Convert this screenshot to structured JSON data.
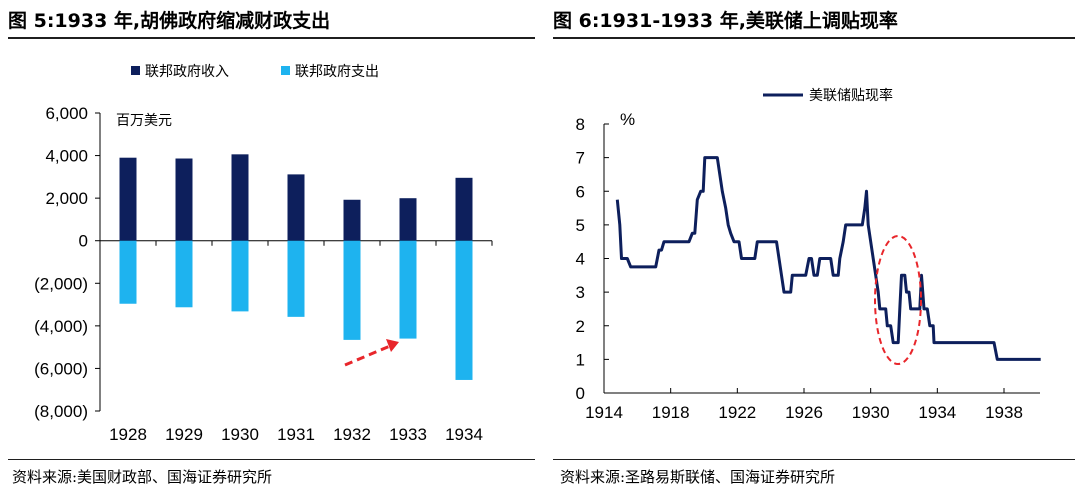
{
  "left": {
    "title": "图 5:1933 年,胡佛政府缩减财政支出",
    "source": "资料来源:美国财政部、国海证券研究所"
  },
  "right": {
    "title": "图 6:1931-1933 年,美联储上调贴现率",
    "source": "资料来源:圣路易斯联储、国海证券研究所"
  },
  "colors": {
    "revenue": "#0d1f5c",
    "spending": "#1eb3ef",
    "rate": "#0d1f5c",
    "annotation": "#e8262b"
  },
  "chart_data": [
    {
      "type": "bar",
      "unit_label": "百万美元",
      "categories": [
        "1928",
        "1929",
        "1930",
        "1931",
        "1932",
        "1933",
        "1934"
      ],
      "series": [
        {
          "name": "联邦政府收入",
          "values": [
            3900,
            3862,
            4058,
            3116,
            1924,
            1997,
            2955
          ]
        },
        {
          "name": "联邦政府支出",
          "values": [
            -2961,
            -3127,
            -3320,
            -3577,
            -4659,
            -4598,
            -6541
          ]
        }
      ],
      "ylim": [
        -8000,
        6000
      ],
      "yticks": [
        6000,
        4000,
        2000,
        0,
        -2000,
        -4000,
        -6000,
        -8000
      ],
      "ytick_labels": [
        "6,000",
        "4,000",
        "2,000",
        "0",
        "(2,000)",
        "(4,000)",
        "(6,000)",
        "(8,000)"
      ],
      "legend": "top-left",
      "annotations": [
        "red dashed arrow pointing to 1933 spending bar"
      ]
    },
    {
      "type": "line",
      "unit_label": "%",
      "series": [
        {
          "name": "美联储贴现率",
          "points": [
            [
              1914.8,
              5.75
            ],
            [
              1914.95,
              5
            ],
            [
              1915.05,
              4
            ],
            [
              1915.4,
              4
            ],
            [
              1915.6,
              3.75
            ],
            [
              1917.1,
              3.75
            ],
            [
              1917.3,
              4.25
            ],
            [
              1917.45,
              4.25
            ],
            [
              1917.6,
              4.5
            ],
            [
              1919.1,
              4.5
            ],
            [
              1919.3,
              4.75
            ],
            [
              1919.45,
              4.75
            ],
            [
              1919.6,
              5.75
            ],
            [
              1919.8,
              6
            ],
            [
              1919.95,
              6
            ],
            [
              1920.05,
              7
            ],
            [
              1920.8,
              7
            ],
            [
              1921.1,
              6
            ],
            [
              1921.3,
              5.5
            ],
            [
              1921.45,
              5
            ],
            [
              1921.6,
              4.75
            ],
            [
              1921.8,
              4.5
            ],
            [
              1922.1,
              4.5
            ],
            [
              1922.25,
              4
            ],
            [
              1923.05,
              4
            ],
            [
              1923.2,
              4.5
            ],
            [
              1924.35,
              4.5
            ],
            [
              1924.5,
              4
            ],
            [
              1924.65,
              3.5
            ],
            [
              1924.8,
              3
            ],
            [
              1925.2,
              3
            ],
            [
              1925.3,
              3.5
            ],
            [
              1926.1,
              3.5
            ],
            [
              1926.3,
              4
            ],
            [
              1926.45,
              4
            ],
            [
              1926.6,
              3.5
            ],
            [
              1926.8,
              3.5
            ],
            [
              1926.95,
              4
            ],
            [
              1927.6,
              4
            ],
            [
              1927.75,
              3.5
            ],
            [
              1928.05,
              3.5
            ],
            [
              1928.15,
              4
            ],
            [
              1928.35,
              4.5
            ],
            [
              1928.5,
              5
            ],
            [
              1929.5,
              5
            ],
            [
              1929.65,
              5.5
            ],
            [
              1929.75,
              6
            ],
            [
              1929.85,
              5
            ],
            [
              1930.0,
              4.5
            ],
            [
              1930.15,
              4
            ],
            [
              1930.3,
              3.5
            ],
            [
              1930.45,
              3
            ],
            [
              1930.55,
              2.5
            ],
            [
              1930.9,
              2.5
            ],
            [
              1931.0,
              2
            ],
            [
              1931.2,
              2
            ],
            [
              1931.35,
              1.5
            ],
            [
              1931.65,
              1.5
            ],
            [
              1931.75,
              2.5
            ],
            [
              1931.85,
              3.5
            ],
            [
              1932.05,
              3.5
            ],
            [
              1932.15,
              3
            ],
            [
              1932.3,
              3
            ],
            [
              1932.4,
              2.5
            ],
            [
              1932.95,
              2.5
            ],
            [
              1933.05,
              3.5
            ],
            [
              1933.2,
              2.5
            ],
            [
              1933.4,
              2.5
            ],
            [
              1933.55,
              2
            ],
            [
              1933.75,
              2
            ],
            [
              1933.8,
              1.5
            ],
            [
              1937.4,
              1.5
            ],
            [
              1937.6,
              1
            ],
            [
              1940.2,
              1
            ]
          ]
        }
      ],
      "xlim": [
        1914,
        1940.5
      ],
      "xticks": [
        1914,
        1918,
        1922,
        1926,
        1930,
        1934,
        1938
      ],
      "ylim": [
        0,
        8
      ],
      "yticks": [
        0,
        1,
        2,
        3,
        4,
        5,
        6,
        7,
        8
      ],
      "legend": "top-center",
      "annotations": [
        "red dashed ellipse highlighting 1931-1933 rate hikes"
      ]
    }
  ]
}
